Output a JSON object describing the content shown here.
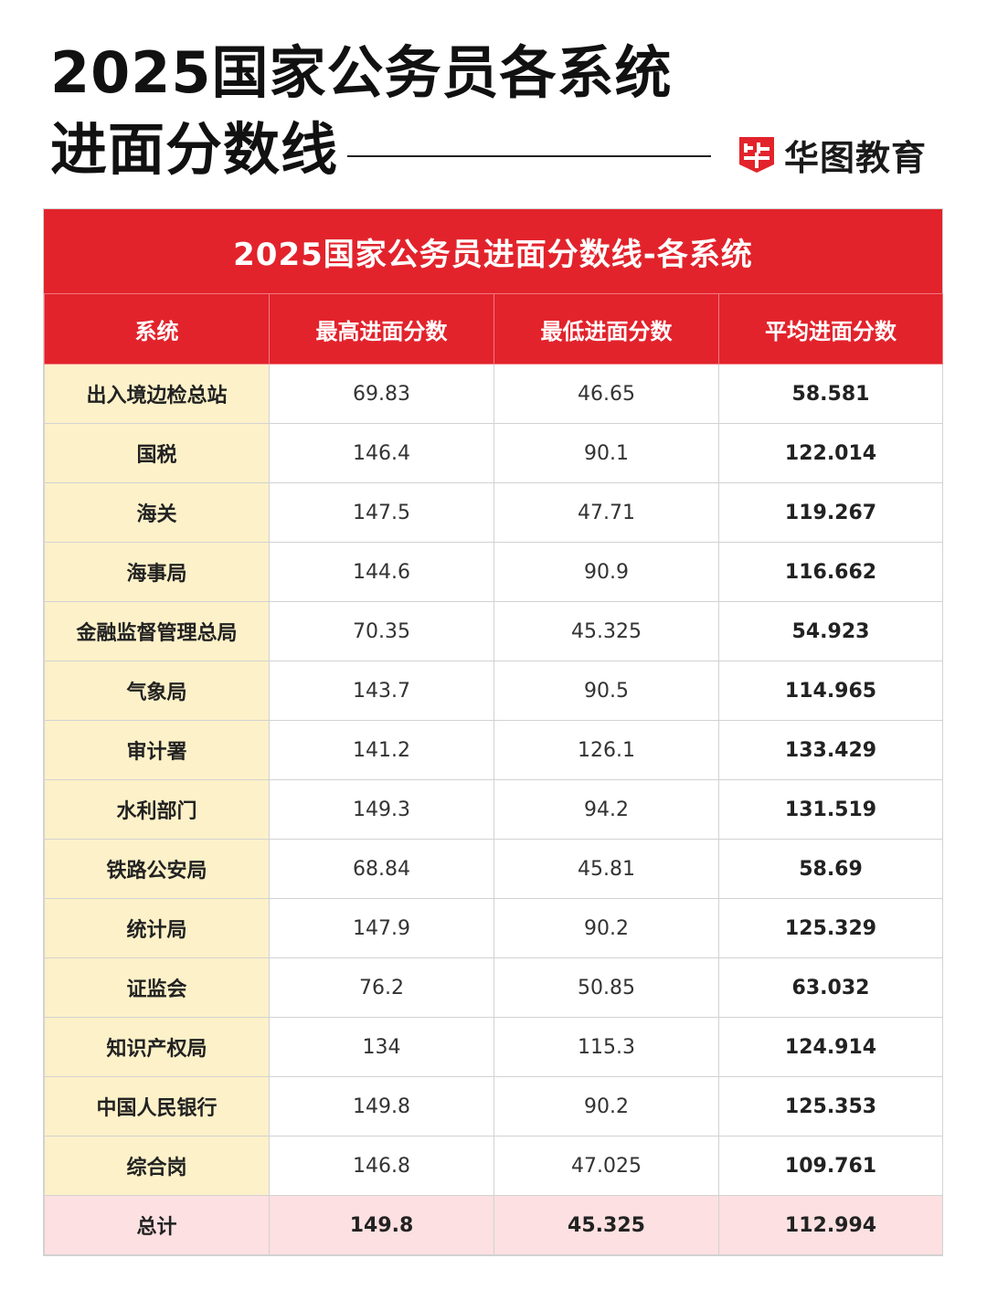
{
  "header": {
    "title_line1": "2025国家公务员各系统",
    "title_line2": "进面分数线",
    "brand_name": "华图教育",
    "brand_icon": "huatu-logo-icon",
    "brand_color": "#e2232c"
  },
  "table": {
    "caption": "2025国家公务员进面分数线-各系统",
    "columns": [
      "系统",
      "最高进面分数",
      "最低进面分数",
      "平均进面分数"
    ],
    "rows": [
      {
        "system": "出入境边检总站",
        "max": "69.83",
        "min": "46.65",
        "avg": "58.581"
      },
      {
        "system": "国税",
        "max": "146.4",
        "min": "90.1",
        "avg": "122.014"
      },
      {
        "system": "海关",
        "max": "147.5",
        "min": "47.71",
        "avg": "119.267"
      },
      {
        "system": "海事局",
        "max": "144.6",
        "min": "90.9",
        "avg": "116.662"
      },
      {
        "system": "金融监督管理总局",
        "max": "70.35",
        "min": "45.325",
        "avg": "54.923"
      },
      {
        "system": "气象局",
        "max": "143.7",
        "min": "90.5",
        "avg": "114.965"
      },
      {
        "system": "审计署",
        "max": "141.2",
        "min": "126.1",
        "avg": "133.429"
      },
      {
        "system": "水利部门",
        "max": "149.3",
        "min": "94.2",
        "avg": "131.519"
      },
      {
        "system": "铁路公安局",
        "max": "68.84",
        "min": "45.81",
        "avg": "58.69"
      },
      {
        "system": "统计局",
        "max": "147.9",
        "min": "90.2",
        "avg": "125.329"
      },
      {
        "system": "证监会",
        "max": "76.2",
        "min": "50.85",
        "avg": "63.032"
      },
      {
        "system": "知识产权局",
        "max": "134",
        "min": "115.3",
        "avg": "124.914"
      },
      {
        "system": "中国人民银行",
        "max": "149.8",
        "min": "90.2",
        "avg": "125.353"
      },
      {
        "system": "综合岗",
        "max": "146.8",
        "min": "47.025",
        "avg": "109.761"
      }
    ],
    "total": {
      "system": "总计",
      "max": "149.8",
      "min": "45.325",
      "avg": "112.994"
    }
  },
  "colors": {
    "header_red": "#e2232c",
    "system_column_bg": "#fdf1c9",
    "total_row_bg": "#fde0e1"
  }
}
